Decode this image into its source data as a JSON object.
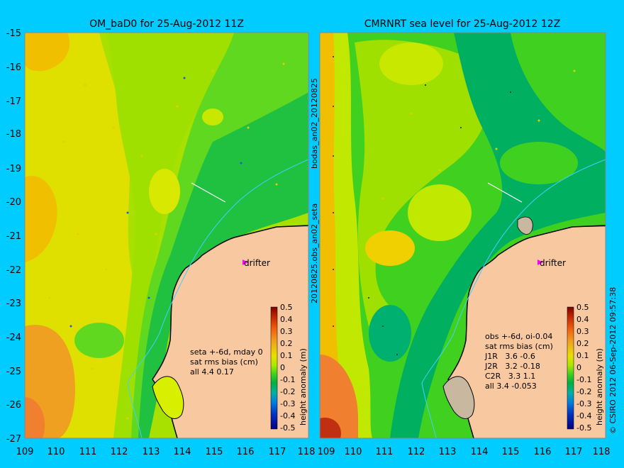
{
  "colors": {
    "background": "#00ccff",
    "land": "#f8c8a0",
    "coast_line": "#000000",
    "isobath": "#40d0ff",
    "track": "#ffffff",
    "drifter_marker": "#ff00ff"
  },
  "left_panel": {
    "title": "OM_baD0 for 25-Aug-2012 11Z",
    "legend_lines": [
      "seta +-6d, mday 0",
      "sat rms bias (cm)",
      "all 4.4 0.17"
    ],
    "drifter_label": "drifter",
    "colorbar_label": "height anomaly (m)"
  },
  "right_panel": {
    "title": "CMRNRT sea level  for 25-Aug-2012 12Z",
    "legend_lines": [
      "obs +-6d, oi-0.04",
      "sat rms bias (cm)",
      "J1R   3.6 -0.6",
      "J2R   3.2 -0.18",
      "C2R   3.3 1.1",
      "all 3.4 -0.053"
    ],
    "drifter_label": "drifter",
    "colorbar_label": "height anomaly (m)"
  },
  "side_labels": {
    "middle_top": "bodas_an02_20120825",
    "middle_bottom": "20120825.obs_an02_seta",
    "right_edge": "© CSIRO 2012   06-Sep-2012 09:57:38"
  },
  "axes": {
    "y_ticks": [
      "-15",
      "-16",
      "-17",
      "-18",
      "-19",
      "-20",
      "-21",
      "-22",
      "-23",
      "-24",
      "-25",
      "-26",
      "-27"
    ],
    "x_ticks": [
      "109",
      "110",
      "111",
      "112",
      "113",
      "114",
      "115",
      "116",
      "117",
      "118"
    ],
    "lon_range": [
      109,
      118
    ],
    "lat_range": [
      -27,
      -15
    ]
  },
  "colorbar": {
    "ticks": [
      "0.5",
      "0.4",
      "0.3",
      "0.2",
      "0.1",
      "0",
      "-0.1",
      "-0.2",
      "-0.3",
      "-0.4",
      "-0.5"
    ],
    "range": [
      -0.5,
      0.5
    ],
    "colors": [
      "#800000",
      "#b82000",
      "#e85000",
      "#f08030",
      "#f0b000",
      "#e0e000",
      "#a0e000",
      "#40d020",
      "#00b040",
      "#00b0b0",
      "#0070e0",
      "#0030c0",
      "#000080"
    ]
  }
}
